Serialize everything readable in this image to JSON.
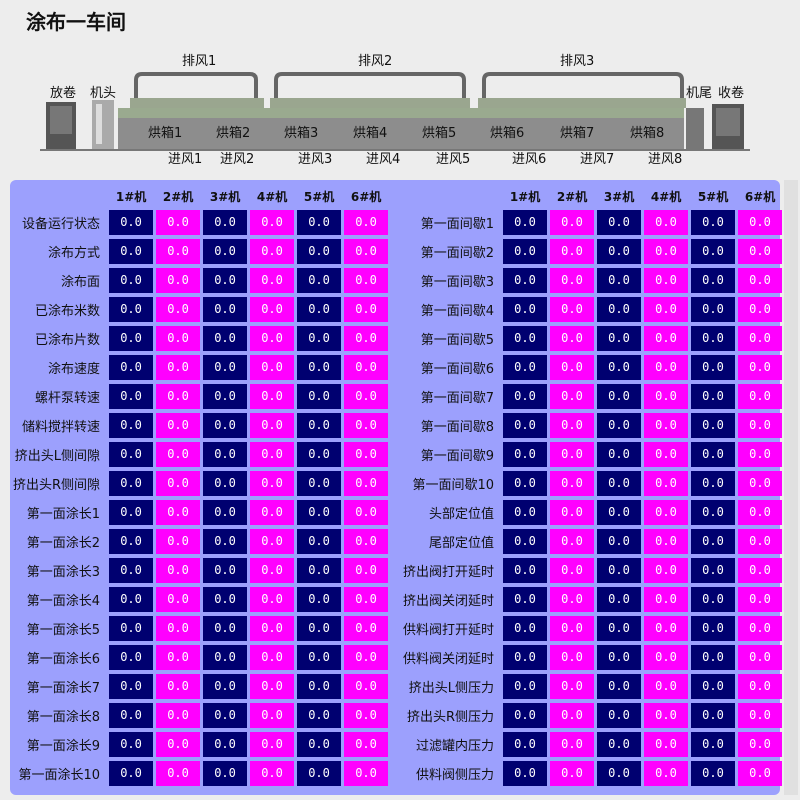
{
  "title": "涂布一车间",
  "diagram": {
    "left_labels": [
      "放卷",
      "机头"
    ],
    "right_labels": [
      "机尾",
      "收卷"
    ],
    "exhaust": [
      "排风1",
      "排风2",
      "排风3"
    ],
    "ovens": [
      "烘箱1",
      "烘箱2",
      "烘箱3",
      "烘箱4",
      "烘箱5",
      "烘箱6",
      "烘箱7",
      "烘箱8"
    ],
    "intake": [
      "进风1",
      "进风2",
      "进风3",
      "进风4",
      "进风5",
      "进风6",
      "进风7",
      "进风8"
    ]
  },
  "left_table": {
    "headers": [
      "1#机",
      "2#机",
      "3#机",
      "4#机",
      "5#机",
      "6#机"
    ],
    "rows": [
      {
        "label": "设备运行状态",
        "values": [
          "0.0",
          "0.0",
          "0.0",
          "0.0",
          "0.0",
          "0.0"
        ]
      },
      {
        "label": "涂布方式",
        "values": [
          "0.0",
          "0.0",
          "0.0",
          "0.0",
          "0.0",
          "0.0"
        ]
      },
      {
        "label": "涂布面",
        "values": [
          "0.0",
          "0.0",
          "0.0",
          "0.0",
          "0.0",
          "0.0"
        ]
      },
      {
        "label": "已涂布米数",
        "values": [
          "0.0",
          "0.0",
          "0.0",
          "0.0",
          "0.0",
          "0.0"
        ]
      },
      {
        "label": "已涂布片数",
        "values": [
          "0.0",
          "0.0",
          "0.0",
          "0.0",
          "0.0",
          "0.0"
        ]
      },
      {
        "label": "涂布速度",
        "values": [
          "0.0",
          "0.0",
          "0.0",
          "0.0",
          "0.0",
          "0.0"
        ]
      },
      {
        "label": "螺杆泵转速",
        "values": [
          "0.0",
          "0.0",
          "0.0",
          "0.0",
          "0.0",
          "0.0"
        ]
      },
      {
        "label": "储料搅拌转速",
        "values": [
          "0.0",
          "0.0",
          "0.0",
          "0.0",
          "0.0",
          "0.0"
        ]
      },
      {
        "label": "挤出头L侧间隙",
        "values": [
          "0.0",
          "0.0",
          "0.0",
          "0.0",
          "0.0",
          "0.0"
        ]
      },
      {
        "label": "挤出头R侧间隙",
        "values": [
          "0.0",
          "0.0",
          "0.0",
          "0.0",
          "0.0",
          "0.0"
        ]
      },
      {
        "label": "第一面涂长1",
        "values": [
          "0.0",
          "0.0",
          "0.0",
          "0.0",
          "0.0",
          "0.0"
        ]
      },
      {
        "label": "第一面涂长2",
        "values": [
          "0.0",
          "0.0",
          "0.0",
          "0.0",
          "0.0",
          "0.0"
        ]
      },
      {
        "label": "第一面涂长3",
        "values": [
          "0.0",
          "0.0",
          "0.0",
          "0.0",
          "0.0",
          "0.0"
        ]
      },
      {
        "label": "第一面涂长4",
        "values": [
          "0.0",
          "0.0",
          "0.0",
          "0.0",
          "0.0",
          "0.0"
        ]
      },
      {
        "label": "第一面涂长5",
        "values": [
          "0.0",
          "0.0",
          "0.0",
          "0.0",
          "0.0",
          "0.0"
        ]
      },
      {
        "label": "第一面涂长6",
        "values": [
          "0.0",
          "0.0",
          "0.0",
          "0.0",
          "0.0",
          "0.0"
        ]
      },
      {
        "label": "第一面涂长7",
        "values": [
          "0.0",
          "0.0",
          "0.0",
          "0.0",
          "0.0",
          "0.0"
        ]
      },
      {
        "label": "第一面涂长8",
        "values": [
          "0.0",
          "0.0",
          "0.0",
          "0.0",
          "0.0",
          "0.0"
        ]
      },
      {
        "label": "第一面涂长9",
        "values": [
          "0.0",
          "0.0",
          "0.0",
          "0.0",
          "0.0",
          "0.0"
        ]
      },
      {
        "label": "第一面涂长10",
        "values": [
          "0.0",
          "0.0",
          "0.0",
          "0.0",
          "0.0",
          "0.0"
        ]
      }
    ]
  },
  "right_table": {
    "headers": [
      "1#机",
      "2#机",
      "3#机",
      "4#机",
      "5#机",
      "6#机"
    ],
    "rows": [
      {
        "label": "第一面间歇1",
        "values": [
          "0.0",
          "0.0",
          "0.0",
          "0.0",
          "0.0",
          "0.0"
        ]
      },
      {
        "label": "第一面间歇2",
        "values": [
          "0.0",
          "0.0",
          "0.0",
          "0.0",
          "0.0",
          "0.0"
        ]
      },
      {
        "label": "第一面间歇3",
        "values": [
          "0.0",
          "0.0",
          "0.0",
          "0.0",
          "0.0",
          "0.0"
        ]
      },
      {
        "label": "第一面间歇4",
        "values": [
          "0.0",
          "0.0",
          "0.0",
          "0.0",
          "0.0",
          "0.0"
        ]
      },
      {
        "label": "第一面间歇5",
        "values": [
          "0.0",
          "0.0",
          "0.0",
          "0.0",
          "0.0",
          "0.0"
        ]
      },
      {
        "label": "第一面间歇6",
        "values": [
          "0.0",
          "0.0",
          "0.0",
          "0.0",
          "0.0",
          "0.0"
        ]
      },
      {
        "label": "第一面间歇7",
        "values": [
          "0.0",
          "0.0",
          "0.0",
          "0.0",
          "0.0",
          "0.0"
        ]
      },
      {
        "label": "第一面间歇8",
        "values": [
          "0.0",
          "0.0",
          "0.0",
          "0.0",
          "0.0",
          "0.0"
        ]
      },
      {
        "label": "第一面间歇9",
        "values": [
          "0.0",
          "0.0",
          "0.0",
          "0.0",
          "0.0",
          "0.0"
        ]
      },
      {
        "label": "第一面间歇10",
        "values": [
          "0.0",
          "0.0",
          "0.0",
          "0.0",
          "0.0",
          "0.0"
        ]
      },
      {
        "label": "头部定位值",
        "values": [
          "0.0",
          "0.0",
          "0.0",
          "0.0",
          "0.0",
          "0.0"
        ]
      },
      {
        "label": "尾部定位值",
        "values": [
          "0.0",
          "0.0",
          "0.0",
          "0.0",
          "0.0",
          "0.0"
        ]
      },
      {
        "label": "挤出阀打开延时",
        "values": [
          "0.0",
          "0.0",
          "0.0",
          "0.0",
          "0.0",
          "0.0"
        ]
      },
      {
        "label": "挤出阀关闭延时",
        "values": [
          "0.0",
          "0.0",
          "0.0",
          "0.0",
          "0.0",
          "0.0"
        ]
      },
      {
        "label": "供料阀打开延时",
        "values": [
          "0.0",
          "0.0",
          "0.0",
          "0.0",
          "0.0",
          "0.0"
        ]
      },
      {
        "label": "供料阀关闭延时",
        "values": [
          "0.0",
          "0.0",
          "0.0",
          "0.0",
          "0.0",
          "0.0"
        ]
      },
      {
        "label": "挤出头L侧压力",
        "values": [
          "0.0",
          "0.0",
          "0.0",
          "0.0",
          "0.0",
          "0.0"
        ]
      },
      {
        "label": "挤出头R侧压力",
        "values": [
          "0.0",
          "0.0",
          "0.0",
          "0.0",
          "0.0",
          "0.0"
        ]
      },
      {
        "label": "过滤罐内压力",
        "values": [
          "0.0",
          "0.0",
          "0.0",
          "0.0",
          "0.0",
          "0.0"
        ]
      },
      {
        "label": "供料阀侧压力",
        "values": [
          "0.0",
          "0.0",
          "0.0",
          "0.0",
          "0.0",
          "0.0"
        ]
      }
    ]
  },
  "colors": {
    "cell_navy": "#000070",
    "cell_magenta": "#ff00ff",
    "panel_bg": "#9ca0fd"
  }
}
